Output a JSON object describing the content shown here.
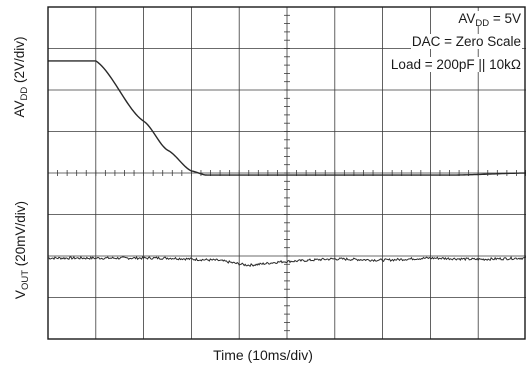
{
  "chart_data": {
    "type": "line",
    "title": "",
    "xlabel": "Time (10ms/div)",
    "ylabel_top": {
      "main": "AV",
      "sub": "DD",
      "rest": " (2V/div)"
    },
    "ylabel_bottom": {
      "main": "V",
      "sub": "OUT",
      "rest": " (20mV/div)"
    },
    "grid": true,
    "divisions": {
      "x": 10,
      "y": 8
    },
    "annotations": [
      {
        "main": "AV",
        "sub": "DD",
        "rest": " = 5V"
      },
      {
        "text": "DAC = Zero Scale"
      },
      {
        "text": "Load = 200pF || 10kΩ"
      }
    ],
    "series": [
      {
        "x_div": [
          0,
          1.0,
          2.0,
          2.5,
          3.0,
          3.3,
          5.0,
          8.5,
          10.0
        ],
        "y_div": [
          6.7,
          6.7,
          5.25,
          4.55,
          4.05,
          3.95,
          3.95,
          3.95,
          4.0
        ]
      },
      {
        "x_div": [
          0,
          1.5,
          2.5,
          3.5,
          4.2,
          5.0,
          6.0,
          7.0,
          8.0,
          9.0,
          10.0
        ],
        "y_div": [
          1.95,
          1.95,
          1.95,
          1.9,
          1.78,
          1.87,
          1.93,
          1.9,
          1.95,
          1.92,
          1.95
        ],
        "noisy": true
      }
    ]
  },
  "colors": {
    "grid": "#3a3a3a",
    "trace": "#2a2a2a",
    "frame": "#1a1a1a"
  }
}
